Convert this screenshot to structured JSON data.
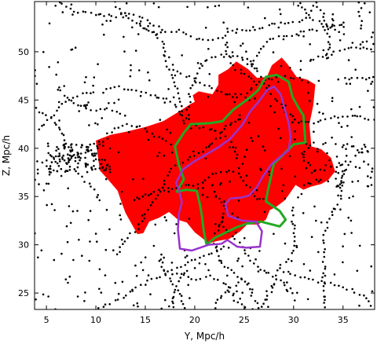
{
  "chart_data": {
    "type": "scatter",
    "xlabel": "Y, Mpc/h",
    "ylabel": "Z, Mpc/h",
    "xlim": [
      3.8,
      38.2
    ],
    "ylim": [
      23.3,
      55.2
    ],
    "xticks": [
      5,
      10,
      15,
      20,
      25,
      30,
      35
    ],
    "yticks": [
      25,
      30,
      35,
      40,
      45,
      50
    ],
    "grid": false,
    "colors": {
      "points": "#000000",
      "region": "#ff0000",
      "green_contour": "#22aa22",
      "purple_contour": "#9933cc"
    },
    "red_region": [
      [
        10.0,
        40.8
      ],
      [
        11.5,
        41.4
      ],
      [
        13.0,
        41.7
      ],
      [
        15.0,
        42.2
      ],
      [
        16.8,
        42.8
      ],
      [
        18.4,
        43.8
      ],
      [
        19.6,
        44.6
      ],
      [
        20.0,
        44.8
      ],
      [
        19.8,
        45.5
      ],
      [
        20.4,
        45.9
      ],
      [
        21.8,
        45.6
      ],
      [
        22.4,
        46.6
      ],
      [
        22.4,
        47.6
      ],
      [
        23.4,
        48.2
      ],
      [
        24.2,
        49.0
      ],
      [
        25.4,
        48.2
      ],
      [
        26.3,
        47.3
      ],
      [
        27.3,
        47.4
      ],
      [
        27.8,
        48.6
      ],
      [
        28.8,
        49.4
      ],
      [
        29.4,
        48.7
      ],
      [
        30.3,
        47.4
      ],
      [
        31.4,
        47.1
      ],
      [
        32.2,
        46.6
      ],
      [
        32.0,
        44.5
      ],
      [
        31.6,
        42.5
      ],
      [
        31.8,
        40.2
      ],
      [
        32.8,
        39.9
      ],
      [
        33.8,
        39.0
      ],
      [
        34.2,
        37.6
      ],
      [
        33.5,
        36.7
      ],
      [
        32.8,
        36.3
      ],
      [
        31.7,
        36.0
      ],
      [
        31.0,
        35.7
      ],
      [
        30.2,
        36.2
      ],
      [
        29.6,
        35.3
      ],
      [
        29.1,
        34.6
      ],
      [
        28.2,
        33.9
      ],
      [
        27.6,
        33.6
      ],
      [
        27.2,
        32.6
      ],
      [
        26.4,
        32.1
      ],
      [
        25.3,
        32.1
      ],
      [
        24.6,
        31.4
      ],
      [
        23.5,
        30.6
      ],
      [
        22.3,
        30.4
      ],
      [
        21.3,
        30.1
      ],
      [
        21.0,
        30.5
      ],
      [
        20.0,
        31.3
      ],
      [
        19.2,
        32.3
      ],
      [
        18.3,
        32.6
      ],
      [
        17.4,
        33.4
      ],
      [
        16.4,
        32.8
      ],
      [
        15.4,
        32.4
      ],
      [
        14.8,
        31.2
      ],
      [
        14.2,
        31.1
      ],
      [
        13.6,
        32.2
      ],
      [
        13.0,
        33.3
      ],
      [
        12.6,
        34.4
      ],
      [
        12.2,
        35.6
      ],
      [
        11.2,
        36.8
      ],
      [
        10.4,
        37.7
      ],
      [
        10.2,
        39.2
      ]
    ],
    "green_contour": [
      [
        18.0,
        40.2
      ],
      [
        18.9,
        41.6
      ],
      [
        19.6,
        42.5
      ],
      [
        21.5,
        42.6
      ],
      [
        22.8,
        42.8
      ],
      [
        23.9,
        44.0
      ],
      [
        25.4,
        45.1
      ],
      [
        26.4,
        46.0
      ],
      [
        27.2,
        47.4
      ],
      [
        28.3,
        47.6
      ],
      [
        29.5,
        46.9
      ],
      [
        29.9,
        45.3
      ],
      [
        30.5,
        44.2
      ],
      [
        31.0,
        43.4
      ],
      [
        31.1,
        42.0
      ],
      [
        31.2,
        40.6
      ],
      [
        30.0,
        40.4
      ],
      [
        28.9,
        39.3
      ],
      [
        28.0,
        38.4
      ],
      [
        27.7,
        37.0
      ],
      [
        27.4,
        35.6
      ],
      [
        27.2,
        34.5
      ],
      [
        28.6,
        33.5
      ],
      [
        29.2,
        32.6
      ],
      [
        28.6,
        31.9
      ],
      [
        26.7,
        32.4
      ],
      [
        25.3,
        32.2
      ],
      [
        24.2,
        31.8
      ],
      [
        23.0,
        31.2
      ],
      [
        22.0,
        30.7
      ],
      [
        21.2,
        30.0
      ],
      [
        20.9,
        31.5
      ],
      [
        20.7,
        33.2
      ],
      [
        20.5,
        34.3
      ],
      [
        20.2,
        35.6
      ],
      [
        19.1,
        35.7
      ],
      [
        18.2,
        35.5
      ],
      [
        18.9,
        36.8
      ],
      [
        18.4,
        38.3
      ]
    ],
    "purple_contour": [
      [
        18.1,
        36.4
      ],
      [
        18.8,
        37.8
      ],
      [
        19.9,
        38.6
      ],
      [
        20.9,
        39.2
      ],
      [
        22.4,
        40.1
      ],
      [
        23.6,
        41.0
      ],
      [
        24.8,
        42.4
      ],
      [
        25.6,
        43.8
      ],
      [
        26.6,
        45.0
      ],
      [
        27.3,
        46.0
      ],
      [
        28.0,
        46.4
      ],
      [
        28.7,
        45.6
      ],
      [
        29.1,
        44.1
      ],
      [
        29.5,
        42.6
      ],
      [
        29.7,
        41.2
      ],
      [
        29.5,
        39.8
      ],
      [
        28.5,
        39.0
      ],
      [
        27.8,
        38.4
      ],
      [
        26.9,
        37.1
      ],
      [
        26.3,
        36.0
      ],
      [
        25.5,
        35.1
      ],
      [
        24.7,
        34.9
      ],
      [
        23.6,
        34.8
      ],
      [
        23.1,
        34.2
      ],
      [
        23.4,
        33.0
      ],
      [
        24.8,
        32.5
      ],
      [
        26.2,
        32.4
      ],
      [
        26.8,
        31.4
      ],
      [
        26.6,
        29.8
      ],
      [
        25.2,
        29.7
      ],
      [
        24.3,
        29.8
      ],
      [
        23.3,
        30.5
      ],
      [
        22.7,
        30.1
      ],
      [
        21.4,
        30.0
      ],
      [
        19.7,
        29.4
      ],
      [
        18.5,
        29.6
      ],
      [
        18.3,
        31.6
      ],
      [
        18.4,
        33.2
      ],
      [
        18.7,
        34.4
      ],
      [
        18.4,
        35.7
      ]
    ]
  }
}
